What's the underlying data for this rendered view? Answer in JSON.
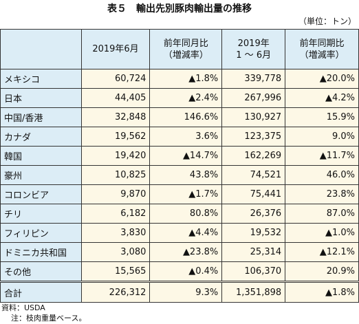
{
  "title": "表５　輸出先別豚肉輸出量の推移",
  "unit": "（単位：トン）",
  "table": {
    "header": [
      [],
      [
        "2019年6月"
      ],
      [
        "前年同月比",
        "（増減率）"
      ],
      [
        "2019年",
        "1 ～ 6月"
      ],
      [
        "前年同期比",
        "（増減率）"
      ]
    ],
    "rows": [
      [
        "メキシコ",
        "60,724",
        "▲1.8%",
        "339,778",
        "▲20.0%"
      ],
      [
        "日本",
        "44,405",
        "▲2.4%",
        "267,996",
        "▲4.2%"
      ],
      [
        "中国/香港",
        "32,848",
        "146.6%",
        "130,927",
        "15.9%"
      ],
      [
        "カナダ",
        "19,562",
        "3.6%",
        "123,375",
        "9.0%"
      ],
      [
        "韓国",
        "19,420",
        "▲14.7%",
        "162,269",
        "▲11.7%"
      ],
      [
        "豪州",
        "10,825",
        "43.8%",
        "74,521",
        "46.0%"
      ],
      [
        "コロンビア",
        "9,870",
        "▲1.7%",
        "75,441",
        "23.8%"
      ],
      [
        "チリ",
        "6,182",
        "80.8%",
        "26,376",
        "87.0%"
      ],
      [
        "フィリピン",
        "3,830",
        "▲4.4%",
        "19,532",
        "▲1.0%"
      ],
      [
        "ドミニカ共和国",
        "3,080",
        "▲23.8%",
        "25,314",
        "▲12.1%"
      ],
      [
        "その他",
        "15,565",
        "▲0.4%",
        "106,370",
        "20.9%"
      ]
    ],
    "total": [
      "合計",
      "226,312",
      "9.3%",
      "1,351,898",
      "▲1.8%"
    ]
  },
  "notes": [
    "資料：USDA",
    "注：枝肉重量ベース。"
  ]
}
